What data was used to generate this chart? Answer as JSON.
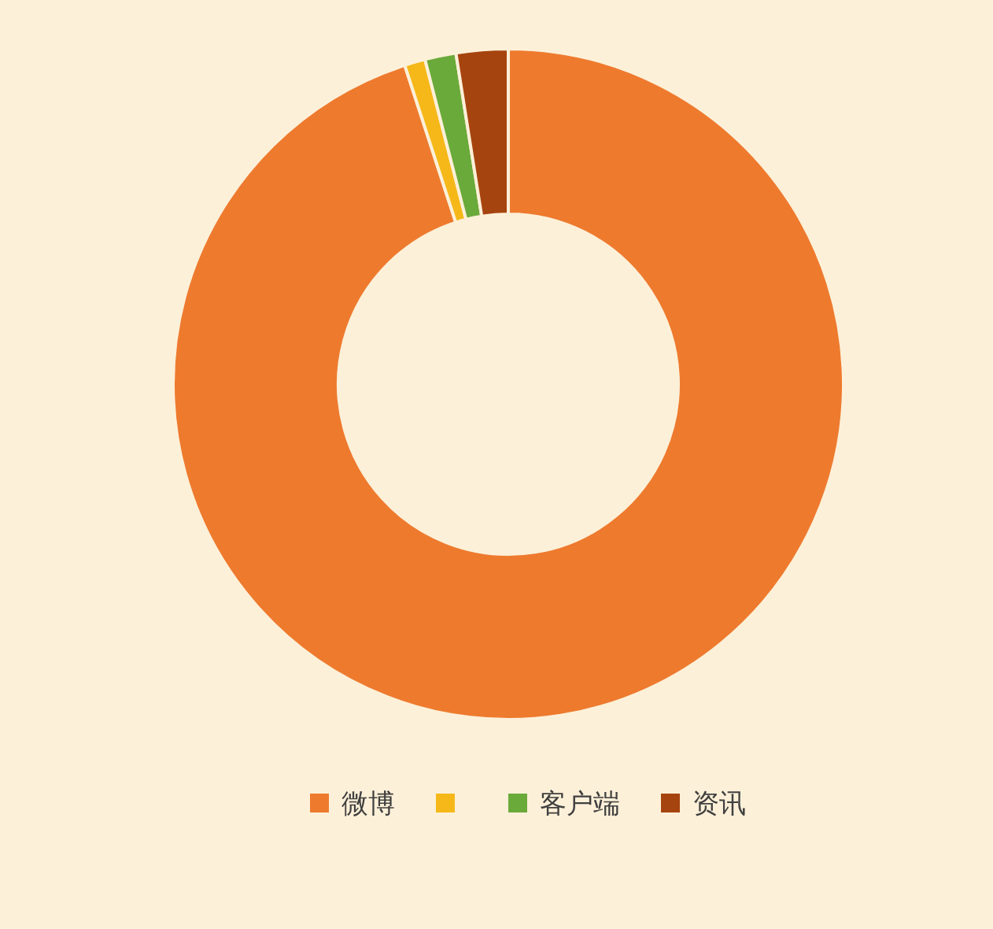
{
  "chart_data": {
    "type": "donut",
    "categories": [
      "微博",
      null,
      "客户端",
      "资讯"
    ],
    "values": [
      95,
      1,
      1.5,
      2.5
    ],
    "colors": [
      "#ee7a2e",
      "#f5b818",
      "#6aaa3a",
      "#a6440f"
    ],
    "legend": "bottom"
  }
}
